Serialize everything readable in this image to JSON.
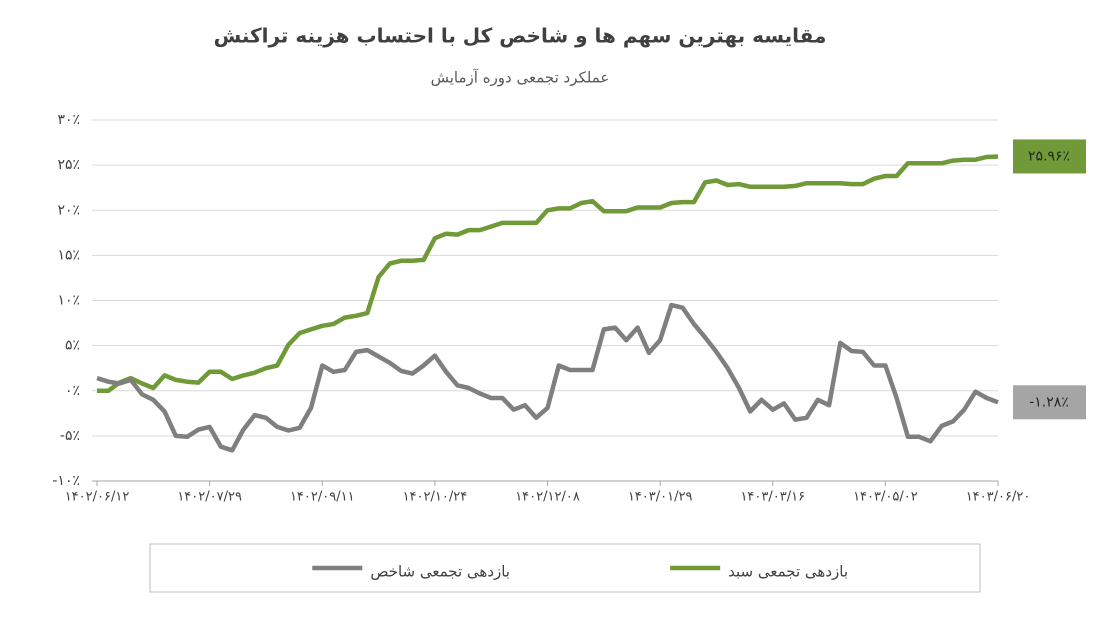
{
  "chart_data": {
    "type": "line",
    "title": "مقایسه بهترین سهم ها و شاخص کل با احتساب هزینه تراکنش",
    "subtitle": "عملکرد تجمعی دوره آزمایش",
    "categories": [
      "۱۴۰۲/۰۶/۱۲",
      null,
      null,
      null,
      null,
      null,
      null,
      null,
      null,
      null,
      "۱۴۰۲/۰۷/۲۹",
      null,
      null,
      null,
      null,
      null,
      null,
      null,
      null,
      null,
      "۱۴۰۲/۰۹/۱۱",
      null,
      null,
      null,
      null,
      null,
      null,
      null,
      null,
      null,
      "۱۴۰۲/۱۰/۲۴",
      null,
      null,
      null,
      null,
      null,
      null,
      null,
      null,
      null,
      "۱۴۰۲/۱۲/۰۸",
      null,
      null,
      null,
      null,
      null,
      null,
      null,
      null,
      null,
      "۱۴۰۳/۰۱/۲۹",
      null,
      null,
      null,
      null,
      null,
      null,
      null,
      null,
      null,
      "۱۴۰۳/۰۳/۱۶",
      null,
      null,
      null,
      null,
      null,
      null,
      null,
      null,
      null,
      "۱۴۰۳/۰۵/۰۲",
      null,
      null,
      null,
      null,
      null,
      null,
      null,
      null,
      null,
      "۱۴۰۳/۰۶/۲۰"
    ],
    "series": [
      {
        "name": "بازدهی تجمعی سبد",
        "color": "#6f9a37",
        "values": [
          0,
          0,
          0.9,
          1.4,
          0.8,
          0.3,
          1.7,
          1.2,
          1.0,
          0.9,
          2.1,
          2.1,
          1.3,
          1.7,
          2.0,
          2.5,
          2.8,
          5.1,
          6.4,
          6.8,
          7.2,
          7.4,
          8.1,
          8.3,
          8.6,
          12.6,
          14.1,
          14.4,
          14.4,
          14.5,
          16.9,
          17.4,
          17.3,
          17.8,
          17.8,
          18.2,
          18.6,
          18.6,
          18.6,
          18.6,
          20.0,
          20.2,
          20.2,
          20.8,
          21.0,
          19.9,
          19.9,
          19.9,
          20.3,
          20.3,
          20.3,
          20.8,
          20.9,
          20.9,
          23.1,
          23.3,
          22.8,
          22.9,
          22.6,
          22.6,
          22.6,
          22.6,
          22.7,
          23.0,
          23.0,
          23.0,
          23.0,
          22.9,
          22.9,
          23.5,
          23.8,
          23.8,
          25.2,
          25.2,
          25.2,
          25.2,
          25.5,
          25.6,
          25.6,
          25.9,
          25.96
        ],
        "value_labels": [
          null,
          null,
          null,
          null,
          null,
          null,
          null,
          null,
          null,
          null,
          null,
          null,
          null,
          null,
          null,
          null,
          null,
          null,
          null,
          null,
          null,
          null,
          null,
          null,
          null,
          null,
          null,
          null,
          null,
          null,
          null,
          null,
          null,
          null,
          null,
          null,
          null,
          null,
          null,
          null,
          null,
          null,
          null,
          null,
          null,
          null,
          null,
          null,
          null,
          null,
          null,
          null,
          null,
          null,
          null,
          null,
          null,
          null,
          null,
          null,
          null,
          null,
          null,
          null,
          null,
          null,
          null,
          null,
          null,
          null,
          null,
          null,
          null,
          null,
          null,
          null,
          null,
          null,
          null,
          null,
          "۲۵.۹۶٪"
        ]
      },
      {
        "name": "بازدهی تجمعی شاخص",
        "color": "#7f7f7f",
        "values": [
          1.4,
          1.0,
          0.8,
          1.2,
          -0.4,
          -1.0,
          -2.3,
          -5.0,
          -5.1,
          -4.3,
          -4.0,
          -6.2,
          -6.6,
          -4.3,
          -2.7,
          -3.0,
          -4.0,
          -4.4,
          -4.1,
          -1.9,
          2.8,
          2.1,
          2.3,
          4.3,
          4.5,
          3.8,
          3.1,
          2.2,
          1.9,
          2.8,
          3.9,
          2.1,
          0.6,
          0.3,
          -0.3,
          -0.8,
          -0.8,
          -2.1,
          -1.6,
          -3.0,
          -1.9,
          2.8,
          2.3,
          2.3,
          2.3,
          6.8,
          7.0,
          5.6,
          7.0,
          4.2,
          5.6,
          9.5,
          9.2,
          7.4,
          5.9,
          4.3,
          2.5,
          0.3,
          -2.3,
          -1.0,
          -2.1,
          -1.4,
          -3.2,
          -3.0,
          -1.0,
          -1.6,
          5.3,
          4.4,
          4.3,
          2.8,
          2.8,
          -0.8,
          -5.1,
          -5.1,
          -5.6,
          -3.9,
          -3.4,
          -2.1,
          -0.1,
          -0.8,
          -1.28
        ],
        "value_labels": [
          null,
          null,
          null,
          null,
          null,
          null,
          null,
          null,
          null,
          null,
          null,
          null,
          null,
          null,
          null,
          null,
          null,
          null,
          null,
          null,
          null,
          null,
          null,
          null,
          null,
          null,
          null,
          null,
          null,
          null,
          null,
          null,
          null,
          null,
          null,
          null,
          null,
          null,
          null,
          null,
          null,
          null,
          null,
          null,
          null,
          null,
          null,
          null,
          null,
          null,
          null,
          null,
          null,
          null,
          null,
          null,
          null,
          null,
          null,
          null,
          null,
          null,
          null,
          null,
          null,
          null,
          null,
          null,
          null,
          null,
          null,
          null,
          null,
          null,
          null,
          null,
          null,
          null,
          null,
          null,
          "-۱.۲۸٪"
        ]
      }
    ],
    "ylim": [
      -10,
      30
    ],
    "yticks": [
      {
        "value": 30,
        "label": "۳۰٪"
      },
      {
        "value": 25,
        "label": "۲۵٪"
      },
      {
        "value": 20,
        "label": "۲۰٪"
      },
      {
        "value": 15,
        "label": "۱۵٪"
      },
      {
        "value": 10,
        "label": "۱۰٪"
      },
      {
        "value": 5,
        "label": "۵٪"
      },
      {
        "value": 0,
        "label": "۰٪"
      },
      {
        "value": -5,
        "label": "-۵٪"
      },
      {
        "value": -10,
        "label": "-۱۰٪"
      }
    ],
    "grid": true,
    "legend": "bottom"
  }
}
